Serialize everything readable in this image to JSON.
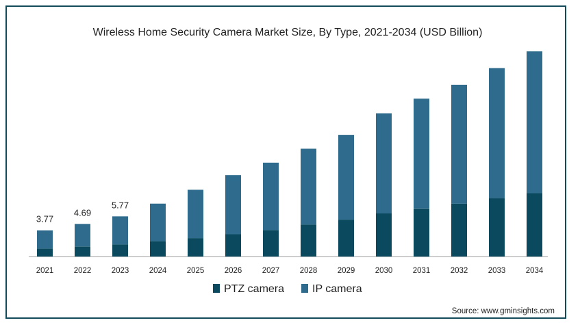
{
  "chart_data": {
    "type": "bar",
    "stacked": true,
    "title": "Wireless Home Security Camera Market Size, By Type, 2021-2034 (USD Billion)",
    "categories": [
      "2021",
      "2022",
      "2023",
      "2024",
      "2025",
      "2026",
      "2027",
      "2028",
      "2029",
      "2030",
      "2031",
      "2032",
      "2033",
      "2034"
    ],
    "series": [
      {
        "name": "PTZ camera",
        "color": "#0b4a5e",
        "values": [
          1.15,
          1.45,
          1.75,
          2.2,
          2.65,
          3.2,
          3.8,
          4.6,
          5.3,
          6.2,
          6.9,
          7.6,
          8.4,
          9.1
        ]
      },
      {
        "name": "IP camera",
        "color": "#2f6b8c",
        "values": [
          2.62,
          3.24,
          4.02,
          5.4,
          6.95,
          8.5,
          9.7,
          10.9,
          12.2,
          14.4,
          15.8,
          17.1,
          18.7,
          20.4
        ]
      }
    ],
    "data_labels": [
      "3.77",
      "4.69",
      "5.77"
    ],
    "ylim": [
      0,
      30
    ],
    "grid": false,
    "legend": "bottom",
    "xlabel": "",
    "ylabel": ""
  },
  "source": "Source: www.gminsights.com",
  "colors": {
    "frame": "#134a5a",
    "axis": "#9e9e9e"
  }
}
